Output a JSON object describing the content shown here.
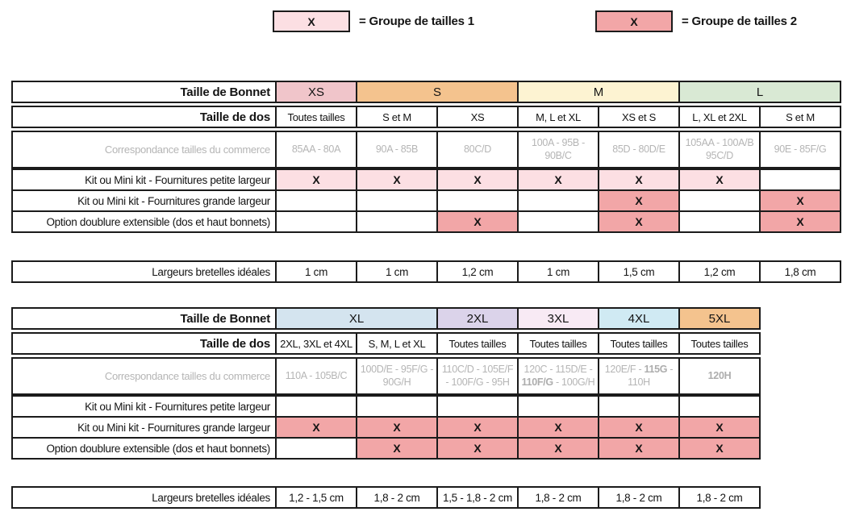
{
  "legend": {
    "group1": {
      "mark": "X",
      "label": "= Groupe de tailles 1"
    },
    "group2": {
      "mark": "X",
      "label": "= Groupe de tailles 2"
    }
  },
  "colors": {
    "border": "#1b1b1b",
    "muted_text": "#b5b5b5",
    "group1_fill": "#fcdfe3",
    "group2_fill": "#f2a6a7"
  },
  "row_labels": {
    "bonnet": "Taille de Bonnet",
    "dos": "Taille de dos",
    "commerce": "Correspondance tailles du commerce",
    "petite": "Kit ou Mini kit - Fournitures petite largeur",
    "grande": "Kit ou Mini kit - Fournitures grande largeur",
    "doublure": "Option doublure extensible (dos et haut bonnets)",
    "bretelles": "Largeurs bretelles idéales"
  },
  "table1": {
    "bonnet_groups": [
      {
        "label": "XS",
        "span": 1,
        "color": "#f0c5ca"
      },
      {
        "label": "S",
        "span": 2,
        "color": "#f4c38e"
      },
      {
        "label": "M",
        "span": 2,
        "color": "#fdf3d2"
      },
      {
        "label": "L",
        "span": 2,
        "color": "#d9e9d4"
      }
    ],
    "dos": [
      "Toutes tailles",
      "S et M",
      "XS",
      "M, L et XL",
      "XS et S",
      "L, XL et 2XL",
      "S et M"
    ],
    "commerce": [
      [
        {
          "t": "85AA - 80A"
        }
      ],
      [
        {
          "t": "90A - 85B"
        }
      ],
      [
        {
          "t": "80C/D"
        }
      ],
      [
        {
          "t": "100A - 95B - 90B/C"
        }
      ],
      [
        {
          "t": "85D - 80D/E"
        }
      ],
      [
        {
          "t": "105AA - 100A/B 95C/D"
        }
      ],
      [
        {
          "t": "90E - 85F/G"
        }
      ]
    ],
    "petite": [
      1,
      1,
      1,
      1,
      1,
      1,
      0
    ],
    "grande": [
      0,
      0,
      0,
      0,
      2,
      0,
      2
    ],
    "doublure": [
      0,
      0,
      2,
      0,
      2,
      0,
      2
    ],
    "bretelles": [
      "1 cm",
      "1 cm",
      "1,2 cm",
      "1 cm",
      "1,5 cm",
      "1,2 cm",
      "1,8 cm"
    ]
  },
  "table2": {
    "bonnet_groups": [
      {
        "label": "XL",
        "span": 2,
        "color": "#d4e4ef"
      },
      {
        "label": "2XL",
        "span": 1,
        "color": "#dbd3ea"
      },
      {
        "label": "3XL",
        "span": 1,
        "color": "#f8eaf4"
      },
      {
        "label": "4XL",
        "span": 1,
        "color": "#d0eaf3"
      },
      {
        "label": "5XL",
        "span": 1,
        "color": "#f4c38e"
      }
    ],
    "dos": [
      "2XL, 3XL et 4XL",
      "S, M, L et XL",
      "Toutes tailles",
      "Toutes tailles",
      "Toutes tailles",
      "Toutes tailles"
    ],
    "commerce": [
      [
        {
          "t": "110A - 105B/C"
        }
      ],
      [
        {
          "t": "100D/E - 95F/G - 90G/H"
        }
      ],
      [
        {
          "t": "110C/D - 105E/F - 100F/G - 95H"
        }
      ],
      [
        {
          "t": "120C - 115D/E - "
        },
        {
          "t": "110F/G",
          "b": true
        },
        {
          "t": " - 100G/H"
        }
      ],
      [
        {
          "t": "120E/F - "
        },
        {
          "t": "115G",
          "b": true
        },
        {
          "t": " - 110H"
        }
      ],
      [
        {
          "t": "120H",
          "b": true
        }
      ]
    ],
    "petite": [
      0,
      0,
      0,
      0,
      0,
      0
    ],
    "grande": [
      2,
      2,
      2,
      2,
      2,
      2
    ],
    "doublure": [
      0,
      2,
      2,
      2,
      2,
      2
    ],
    "bretelles": [
      "1,2 - 1,5 cm",
      "1,8 - 2 cm",
      "1,5 - 1,8 - 2 cm",
      "1,8 - 2 cm",
      "1,8 - 2 cm",
      "1,8 - 2 cm"
    ]
  }
}
